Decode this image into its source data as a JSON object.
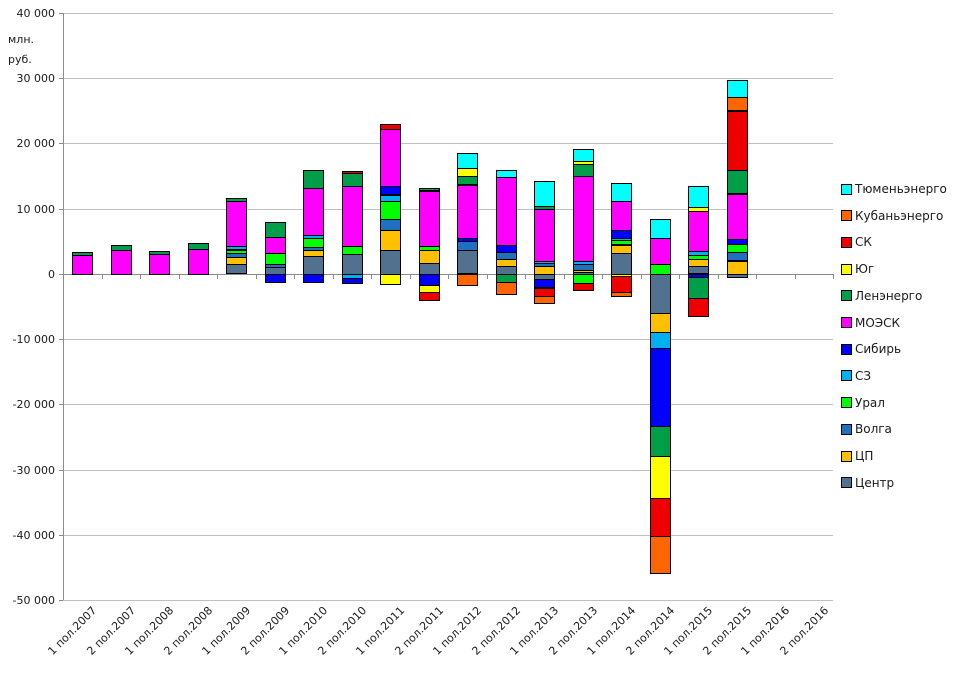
{
  "chart_data": {
    "type": "bar",
    "stacked": true,
    "unit_label_line1": "млн.",
    "unit_label_line2": "руб.",
    "legend_position": "right",
    "grid": true,
    "y_axis": {
      "min": -50000,
      "max": 40000,
      "step": 10000,
      "tick_labels": [
        "40 000",
        "30 000",
        "20 000",
        "10 000",
        "0",
        "-10 000",
        "-20 000",
        "-30 000",
        "-40 000",
        "-50 000"
      ]
    },
    "categories": [
      "1 пол.2007",
      "2 пол.2007",
      "1 пол.2008",
      "2 пол.2008",
      "1 пол.2009",
      "2 пол.2009",
      "1 пол.2010",
      "2 пол.2010",
      "1 пол.2011",
      "2 пол.2011",
      "1 пол.2012",
      "2 пол.2012",
      "1 пол.2013",
      "2 пол.2013",
      "1 пол.2014",
      "2 пол.2014",
      "1 пол.2015",
      "2 пол.2015",
      "1 пол.2016",
      "2 пол.2016"
    ],
    "series": [
      {
        "name": "Тюменьэнерго",
        "color": "#00FFFF",
        "values": [
          0,
          0,
          0,
          0,
          0,
          0,
          0,
          0,
          0,
          0,
          2300,
          1100,
          3900,
          1800,
          2700,
          2900,
          3200,
          2600,
          0,
          0
        ]
      },
      {
        "name": "Кубаньэнерго",
        "color": "#FF6600",
        "values": [
          0,
          0,
          0,
          0,
          0,
          0,
          0,
          0,
          0,
          0,
          -1700,
          -1800,
          -1000,
          0,
          -600,
          -5600,
          0,
          2200,
          0,
          0
        ]
      },
      {
        "name": "СК",
        "color": "#EE0000",
        "values": [
          0,
          0,
          0,
          0,
          0,
          0,
          0,
          300,
          700,
          -1200,
          0,
          0,
          -1300,
          -1100,
          -2600,
          -5900,
          -2700,
          9100,
          0,
          0
        ]
      },
      {
        "name": "Юг",
        "color": "#FFFF00",
        "values": [
          0,
          0,
          0,
          0,
          0,
          0,
          0,
          0,
          -1600,
          -1100,
          1300,
          0,
          0,
          500,
          -250,
          -6400,
          600,
          0,
          0,
          0
        ]
      },
      {
        "name": "Ленэнерго",
        "color": "#009E49",
        "values": [
          500,
          800,
          500,
          900,
          400,
          2300,
          2700,
          2000,
          0,
          350,
          1300,
          -1300,
          500,
          1800,
          0,
          -4600,
          -3200,
          3600,
          0,
          0
        ]
      },
      {
        "name": "МОЭСК",
        "color": "#FF00FF",
        "values": [
          2900,
          3700,
          3000,
          3800,
          7100,
          2500,
          7400,
          9200,
          8900,
          8500,
          8200,
          10500,
          8000,
          13000,
          4400,
          4000,
          6100,
          6900,
          0,
          0
        ]
      },
      {
        "name": "Сибирь",
        "color": "#0000FF",
        "values": [
          0,
          0,
          0,
          0,
          0,
          -1200,
          -1200,
          -700,
          1300,
          -1700,
          500,
          1000,
          -1300,
          0,
          1300,
          -11900,
          -550,
          800,
          0,
          0
        ]
      },
      {
        "name": "СЗ",
        "color": "#00B0F0",
        "values": [
          0,
          0,
          0,
          0,
          500,
          0,
          400,
          -700,
          900,
          0,
          0,
          0,
          300,
          400,
          350,
          -2500,
          600,
          0,
          0,
          0
        ]
      },
      {
        "name": "Урал",
        "color": "#00FF00",
        "values": [
          0,
          0,
          0,
          0,
          400,
          1700,
          1400,
          1200,
          2700,
          550,
          0,
          0,
          0,
          -1400,
          650,
          1500,
          600,
          1300,
          0,
          0
        ]
      },
      {
        "name": "Волга",
        "color": "#1F70C0",
        "values": [
          0,
          0,
          0,
          0,
          700,
          500,
          500,
          0,
          1800,
          0,
          1400,
          1100,
          400,
          1100,
          0,
          0,
          0,
          1300,
          0,
          0
        ]
      },
      {
        "name": "ЦП",
        "color": "#FFC000",
        "values": [
          0,
          0,
          0,
          0,
          1000,
          0,
          900,
          0,
          3000,
          2000,
          0,
          1100,
          1200,
          250,
          1200,
          -2900,
          1000,
          2000,
          0,
          0
        ]
      },
      {
        "name": "Центр",
        "color": "#52718F",
        "values": [
          0,
          0,
          0,
          0,
          1600,
          1000,
          2700,
          3000,
          3700,
          1700,
          3600,
          1200,
          -800,
          300,
          3300,
          -6000,
          1300,
          -500,
          0,
          0
        ]
      }
    ]
  }
}
